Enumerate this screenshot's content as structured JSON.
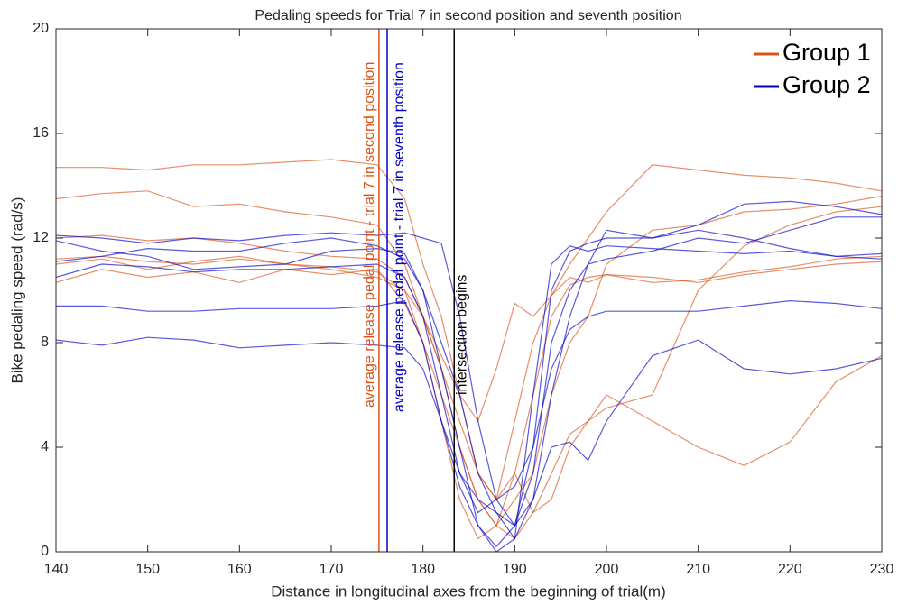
{
  "chart_data": {
    "type": "line",
    "title": "Pedaling speeds for Trial 7 in second position and seventh position",
    "x_label": "Distance in longitudinal axes from the beginning of trial(m)",
    "y_label": "Bike pedaling speed (rad/s)",
    "x": [
      140,
      145,
      150,
      155,
      160,
      165,
      170,
      175,
      178,
      180,
      182,
      184,
      186,
      188,
      190,
      192,
      194,
      196,
      198,
      200,
      205,
      210,
      215,
      220,
      225,
      230
    ],
    "xlim": [
      140,
      230
    ],
    "xticks": [
      140,
      150,
      160,
      170,
      180,
      190,
      200,
      210,
      220,
      230
    ],
    "ylim": [
      0,
      20
    ],
    "yticks": [
      0,
      4,
      8,
      12,
      16,
      20
    ],
    "grid": false,
    "legend": "northeast",
    "series": [
      {
        "name": "Group 1",
        "color": "#d95319",
        "lines": [
          [
            14.7,
            14.7,
            14.6,
            14.8,
            14.8,
            14.9,
            15,
            14.8,
            13.5,
            11,
            9,
            6,
            3,
            2,
            5,
            8,
            9.8,
            11,
            12,
            13,
            14.8,
            14.6,
            14.4,
            14.3,
            14.1,
            13.8
          ],
          [
            13.5,
            13.7,
            13.8,
            13.2,
            13.3,
            13,
            12.8,
            12.5,
            11,
            9,
            7,
            4,
            2,
            1,
            3,
            6,
            9,
            10.2,
            10.5,
            10.6,
            10.5,
            10.3,
            10.6,
            10.8,
            11,
            11.1
          ],
          [
            11.2,
            11.3,
            11.1,
            11,
            11.2,
            11,
            10.8,
            10.5,
            10,
            9,
            7.5,
            6,
            5,
            7,
            9.5,
            9,
            9.8,
            10.5,
            10.3,
            10.6,
            10.3,
            10.4,
            10.7,
            10.9,
            11.2,
            11.3
          ],
          [
            10.3,
            10.8,
            10.5,
            10.7,
            10.3,
            10.8,
            10.6,
            10.8,
            9.5,
            8,
            6,
            4,
            2,
            1,
            0.5,
            1.5,
            3,
            4.5,
            5,
            6,
            5,
            4,
            3.3,
            4.2,
            6.5,
            7.5
          ],
          [
            11,
            11.2,
            10.8,
            11.1,
            11.3,
            11,
            10.9,
            10.7,
            10,
            8,
            5,
            2,
            0.5,
            1,
            2,
            3,
            6,
            8,
            9,
            11,
            12.3,
            12.5,
            13,
            13.1,
            13.3,
            13.6
          ],
          [
            12,
            12.1,
            11.9,
            12,
            11.8,
            11.5,
            11.3,
            11.2,
            10.5,
            9,
            7,
            5,
            3,
            2,
            3,
            1.5,
            2,
            4,
            5,
            5.5,
            6,
            10,
            11.7,
            12.5,
            13,
            13.2
          ]
        ]
      },
      {
        "name": "Group 2",
        "color": "#0000c8",
        "lines": [
          [
            12.1,
            12,
            11.8,
            12,
            11.9,
            12.1,
            12.2,
            12.1,
            12.2,
            12,
            11.8,
            9,
            5,
            2,
            1,
            4,
            10,
            11.5,
            11.8,
            12,
            12,
            12.3,
            12,
            11.6,
            11.3,
            11.2
          ],
          [
            11.9,
            11.5,
            11.3,
            10.8,
            10.9,
            11,
            11.5,
            11.6,
            11.4,
            10,
            8,
            6,
            3,
            1.5,
            0.5,
            6,
            11,
            11.7,
            11.5,
            11.7,
            11.6,
            11.5,
            11.4,
            11.5,
            11.3,
            11.4
          ],
          [
            11.1,
            11.3,
            11.6,
            11.5,
            11.5,
            11.8,
            12,
            11.7,
            11.2,
            10,
            7,
            4,
            1,
            0.2,
            1,
            2,
            6,
            9,
            11,
            12.3,
            12,
            12.5,
            13.3,
            13.4,
            13.2,
            12.9
          ],
          [
            10.5,
            11,
            10.9,
            10.7,
            10.8,
            10.8,
            10.9,
            11,
            10.5,
            9,
            6,
            3,
            1.5,
            2,
            2.5,
            4,
            7,
            8.5,
            9,
            9.2,
            9.2,
            9.2,
            9.4,
            9.6,
            9.5,
            9.3
          ],
          [
            9.4,
            9.4,
            9.2,
            9.2,
            9.3,
            9.3,
            9.3,
            9.4,
            9.6,
            8,
            5,
            2.5,
            1,
            0,
            0.5,
            2,
            4,
            4.2,
            3.5,
            5,
            7.5,
            8.1,
            7,
            6.8,
            7,
            7.4
          ],
          [
            8.1,
            7.9,
            8.2,
            8.1,
            7.8,
            7.9,
            8,
            7.9,
            7.8,
            7,
            5,
            3,
            2,
            1.5,
            1,
            3,
            8,
            10,
            11,
            11.2,
            11.5,
            12,
            11.8,
            12.3,
            12.8,
            12.8
          ]
        ]
      }
    ],
    "annotations": [
      {
        "x": 175.2,
        "label": "average release pedal point - trial 7 in second position",
        "color": "#d95319"
      },
      {
        "x": 176.1,
        "label": "average release pedal point - trial 7 in seventh position",
        "color": "#0000c8"
      },
      {
        "x": 183.4,
        "label": "intersection begins",
        "color": "#000000"
      }
    ]
  }
}
